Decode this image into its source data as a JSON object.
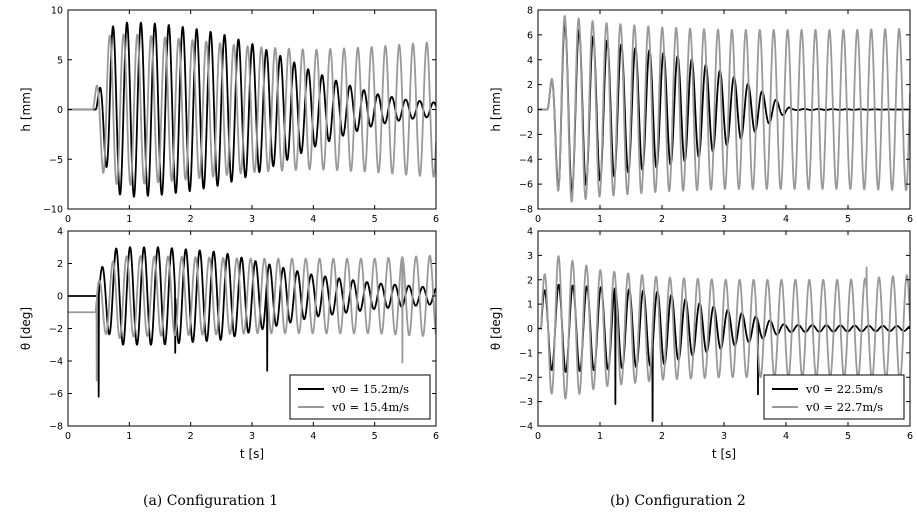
{
  "colors": {
    "black_series": "#000000",
    "gray_series": "#999999"
  },
  "captions": [
    "(a)  Configuration 1",
    "(b)  Configuration 2"
  ],
  "chart_data": [
    {
      "id": "a-top",
      "type": "line",
      "ylabel": "h [mm]",
      "xlim": [
        0,
        6
      ],
      "ylim": [
        -10,
        10
      ],
      "xticks": [
        "0",
        "1",
        "2",
        "3",
        "4",
        "5",
        "6"
      ],
      "yticks": [
        "-10",
        "-5",
        "0",
        "5",
        "10"
      ],
      "series": [
        {
          "color": "#000000",
          "freq_hz": 4.4,
          "onset_s": 0.45,
          "end_s": 6.0,
          "env_t": [
            0.45,
            0.7,
            1.0,
            1.5,
            2.0,
            2.5,
            3.0,
            3.5,
            4.0,
            4.5,
            5.0,
            5.5,
            6.0
          ],
          "env_a": [
            0.0,
            8.3,
            8.8,
            8.6,
            8.2,
            7.6,
            6.6,
            5.3,
            3.8,
            2.6,
            1.6,
            1.0,
            0.7
          ],
          "pre_value": 0.0
        },
        {
          "color": "#999999",
          "freq_hz": 4.45,
          "onset_s": 0.4,
          "end_s": 6.0,
          "env_t": [
            0.4,
            0.6,
            1.0,
            2.0,
            3.0,
            4.0,
            5.0,
            6.0
          ],
          "env_a": [
            0.0,
            7.4,
            7.6,
            7.0,
            6.3,
            6.0,
            6.3,
            6.8
          ],
          "pre_value": 0.0
        }
      ]
    },
    {
      "id": "a-bottom",
      "type": "line",
      "xlabel": "t [s]",
      "ylabel": "θ [deg]",
      "xlim": [
        0,
        6
      ],
      "ylim": [
        -8,
        4
      ],
      "xticks": [
        "0",
        "1",
        "2",
        "3",
        "4",
        "5",
        "6"
      ],
      "yticks": [
        "-8",
        "-6",
        "-4",
        "-2",
        "0",
        "2",
        "4"
      ],
      "legend": {
        "position": "bottom-right",
        "entries": [
          "v0 = 15.2m/s",
          "v0 = 15.4m/s"
        ]
      },
      "series": [
        {
          "color": "#000000",
          "freq_hz": 4.4,
          "onset_s": 0.5,
          "end_s": 6.0,
          "env_t": [
            0.5,
            0.8,
            1.5,
            2.5,
            3.0,
            4.0,
            5.0,
            6.0
          ],
          "env_a": [
            1.5,
            3.0,
            3.0,
            2.7,
            2.2,
            1.3,
            0.8,
            0.5
          ],
          "pre_value": 0.0,
          "spikes": [
            {
              "t": 0.5,
              "v": -6.2
            },
            {
              "t": 3.25,
              "v": -4.6
            },
            {
              "t": 1.75,
              "v": -3.5
            }
          ]
        },
        {
          "color": "#999999",
          "freq_hz": 4.45,
          "onset_s": 0.45,
          "end_s": 6.0,
          "env_t": [
            0.45,
            0.8,
            2.0,
            3.0,
            4.0,
            5.0,
            6.0
          ],
          "env_a": [
            1.5,
            2.5,
            2.4,
            2.3,
            2.3,
            2.3,
            2.5
          ],
          "pre_value": -1.0,
          "spikes": [
            {
              "t": 0.47,
              "v": -5.2
            },
            {
              "t": 5.45,
              "v": -4.1
            }
          ]
        }
      ]
    },
    {
      "id": "b-top",
      "type": "line",
      "ylabel": "h [mm]",
      "xlim": [
        0,
        6
      ],
      "ylim": [
        -8,
        8
      ],
      "xticks": [
        "0",
        "1",
        "2",
        "3",
        "4",
        "5",
        "6"
      ],
      "yticks": [
        "-8",
        "-6",
        "-4",
        "-2",
        "0",
        "2",
        "4",
        "6",
        "8"
      ],
      "series": [
        {
          "color": "#000000",
          "freq_hz": 4.4,
          "onset_s": 0.15,
          "end_s": 6.0,
          "env_t": [
            0.15,
            0.35,
            0.8,
            1.5,
            2.0,
            2.5,
            3.0,
            3.5,
            3.9,
            4.1,
            6.0
          ],
          "env_a": [
            0.0,
            7.2,
            6.0,
            5.0,
            4.6,
            4.0,
            3.0,
            1.8,
            0.6,
            0.05,
            0.0
          ],
          "pre_value": 0.0
        },
        {
          "color": "#999999",
          "freq_hz": 4.45,
          "onset_s": 0.15,
          "end_s": 6.0,
          "env_t": [
            0.15,
            0.35,
            1.0,
            2.0,
            3.0,
            4.0,
            5.0,
            6.0
          ],
          "env_a": [
            0.0,
            7.6,
            7.0,
            6.6,
            6.4,
            6.4,
            6.4,
            6.5
          ],
          "pre_value": 0.0
        }
      ]
    },
    {
      "id": "b-bottom",
      "type": "line",
      "xlabel": "t [s]",
      "ylabel": "θ [deg]",
      "xlim": [
        0,
        6
      ],
      "ylim": [
        -4,
        4
      ],
      "xticks": [
        "0",
        "1",
        "2",
        "3",
        "4",
        "5",
        "6"
      ],
      "yticks": [
        "-4",
        "-3",
        "-2",
        "-1",
        "0",
        "1",
        "2",
        "3",
        "4"
      ],
      "legend": {
        "position": "bottom-right",
        "entries": [
          "v0 = 22.5m/s",
          "v0 = 22.7m/s"
        ]
      },
      "series": [
        {
          "color": "#000000",
          "freq_hz": 4.4,
          "onset_s": 0.05,
          "end_s": 6.0,
          "env_t": [
            0.05,
            0.3,
            1.0,
            2.0,
            2.5,
            3.0,
            3.5,
            4.0,
            6.0
          ],
          "env_a": [
            1.5,
            1.8,
            1.7,
            1.5,
            1.1,
            0.8,
            0.5,
            0.15,
            0.1
          ],
          "pre_value": 0.0,
          "spikes": [
            {
              "t": 1.85,
              "v": -3.8
            },
            {
              "t": 1.25,
              "v": -3.1
            },
            {
              "t": 3.55,
              "v": -2.7
            }
          ]
        },
        {
          "color": "#999999",
          "freq_hz": 4.45,
          "onset_s": 0.05,
          "end_s": 6.0,
          "env_t": [
            0.05,
            0.3,
            1.0,
            2.0,
            3.0,
            4.0,
            5.0,
            6.0
          ],
          "env_a": [
            2.0,
            3.0,
            2.4,
            2.1,
            2.0,
            2.0,
            2.0,
            2.2
          ],
          "pre_value": 0.0,
          "spikes": [
            {
              "t": 5.3,
              "v": 2.5
            }
          ]
        }
      ]
    }
  ]
}
